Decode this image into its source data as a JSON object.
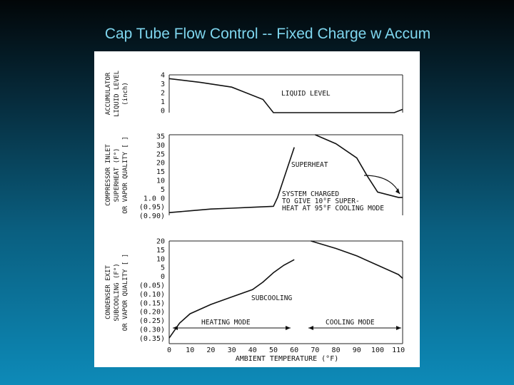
{
  "slide": {
    "title": "Cap Tube Flow Control -- Fixed Charge w Accum"
  },
  "chart_data": [
    {
      "type": "line",
      "panel": "accumulator",
      "ylabel_lines": [
        "ACCUMULATOR",
        "LIQUID LEVEL",
        "(inch)"
      ],
      "yticks": [
        "4",
        "3",
        "2",
        "1",
        "0"
      ],
      "ylim": [
        0,
        4
      ],
      "annotation": "LIQUID LEVEL",
      "series": [
        {
          "x": [
            0,
            15,
            30,
            45,
            50,
            60,
            70,
            80,
            90,
            100,
            108,
            112
          ],
          "y": [
            3.6,
            3.2,
            2.7,
            1.4,
            0,
            0,
            0,
            0,
            0,
            0,
            0,
            0.35
          ]
        }
      ]
    },
    {
      "type": "line",
      "panel": "compressor-inlet",
      "ylabel_lines": [
        "COMPRESSOR INLET",
        "SUPERHEAT (F°)",
        "OR VAPOR QUALITY [ ]"
      ],
      "yticks": [
        "35",
        "30",
        "25",
        "20",
        "15",
        "10",
        "5",
        "1.0 0",
        "(0.95)",
        "(0.90)"
      ],
      "ylim": [
        -10,
        35
      ],
      "annotations": [
        "SUPERHEAT",
        "SYSTEM CHARGED",
        "TO GIVE 10°F SUPER-",
        "HEAT AT 95°F COOLING MODE"
      ],
      "series": [
        {
          "x": [
            0,
            10,
            20,
            30,
            40,
            50,
            52,
            60
          ],
          "y": [
            -8.5,
            -7.5,
            -6.5,
            -6,
            -5.5,
            -5,
            0,
            28
          ]
        },
        {
          "x": [
            70,
            80,
            90,
            95,
            100,
            110,
            112
          ],
          "y": [
            35,
            30,
            22,
            12,
            3,
            0,
            0
          ]
        }
      ]
    },
    {
      "type": "line",
      "panel": "condenser-exit",
      "ylabel_lines": [
        "CONDENSER EXIT",
        "SUBCOOLING (F°)",
        "OR VAPOR QUALITY [ ]"
      ],
      "yticks": [
        "20",
        "15",
        "10",
        "5",
        "0",
        "(0.05)",
        "(0.10)",
        "(0.15)",
        "(0.20)",
        "(0.25)",
        "(0.30)",
        "(0.35)"
      ],
      "ylim": [
        -35,
        20
      ],
      "annotations": [
        "SUBCOOLING",
        "HEATING MODE",
        "COOLING MODE"
      ],
      "xticks": [
        "0",
        "10",
        "20",
        "30",
        "40",
        "50",
        "60",
        "70",
        "80",
        "90",
        "100",
        "110"
      ],
      "xlabel": "AMBIENT TEMPERATURE (°F)",
      "xlim": [
        0,
        112
      ],
      "series": [
        {
          "x": [
            0,
            5,
            10,
            20,
            30,
            40,
            45,
            50,
            55,
            60
          ],
          "y": [
            -32,
            -24,
            -19,
            -14,
            -10,
            -6,
            -2,
            3,
            7,
            10
          ]
        },
        {
          "x": [
            68,
            80,
            90,
            100,
            110,
            112
          ],
          "y": [
            20,
            16,
            12,
            7,
            2,
            0
          ]
        }
      ]
    }
  ]
}
